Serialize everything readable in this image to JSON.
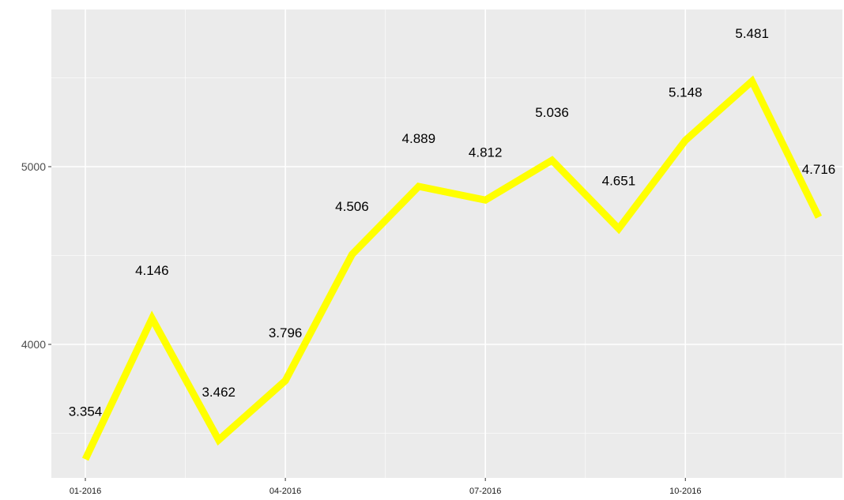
{
  "chart_data": {
    "type": "line",
    "title": "",
    "xlabel": "",
    "ylabel": "",
    "x": [
      "01-2016",
      "02-2016",
      "03-2016",
      "04-2016",
      "05-2016",
      "06-2016",
      "07-2016",
      "08-2016",
      "09-2016",
      "10-2016",
      "11-2016",
      "12-2016"
    ],
    "x_tick_labels": [
      "01-2016",
      "04-2016",
      "07-2016",
      "10-2016"
    ],
    "y_ticks": [
      4000,
      5000
    ],
    "y_tick_labels": [
      "4000",
      "5000"
    ],
    "ylim": [
      3300,
      5700
    ],
    "series": [
      {
        "values": [
          3354,
          4146,
          3462,
          3796,
          4506,
          4889,
          4812,
          5036,
          4651,
          5148,
          5481,
          4716
        ],
        "data_labels": [
          "3.354",
          "4.146",
          "3.462",
          "3.796",
          "4.506",
          "4.889",
          "4.812",
          "5.036",
          "4.651",
          "5.148",
          "5.481",
          "4.716"
        ],
        "color": "#ffff00"
      }
    ],
    "panel_background": "#ebebeb",
    "grid_color": "#ffffff",
    "grid": true,
    "legend": "none"
  }
}
